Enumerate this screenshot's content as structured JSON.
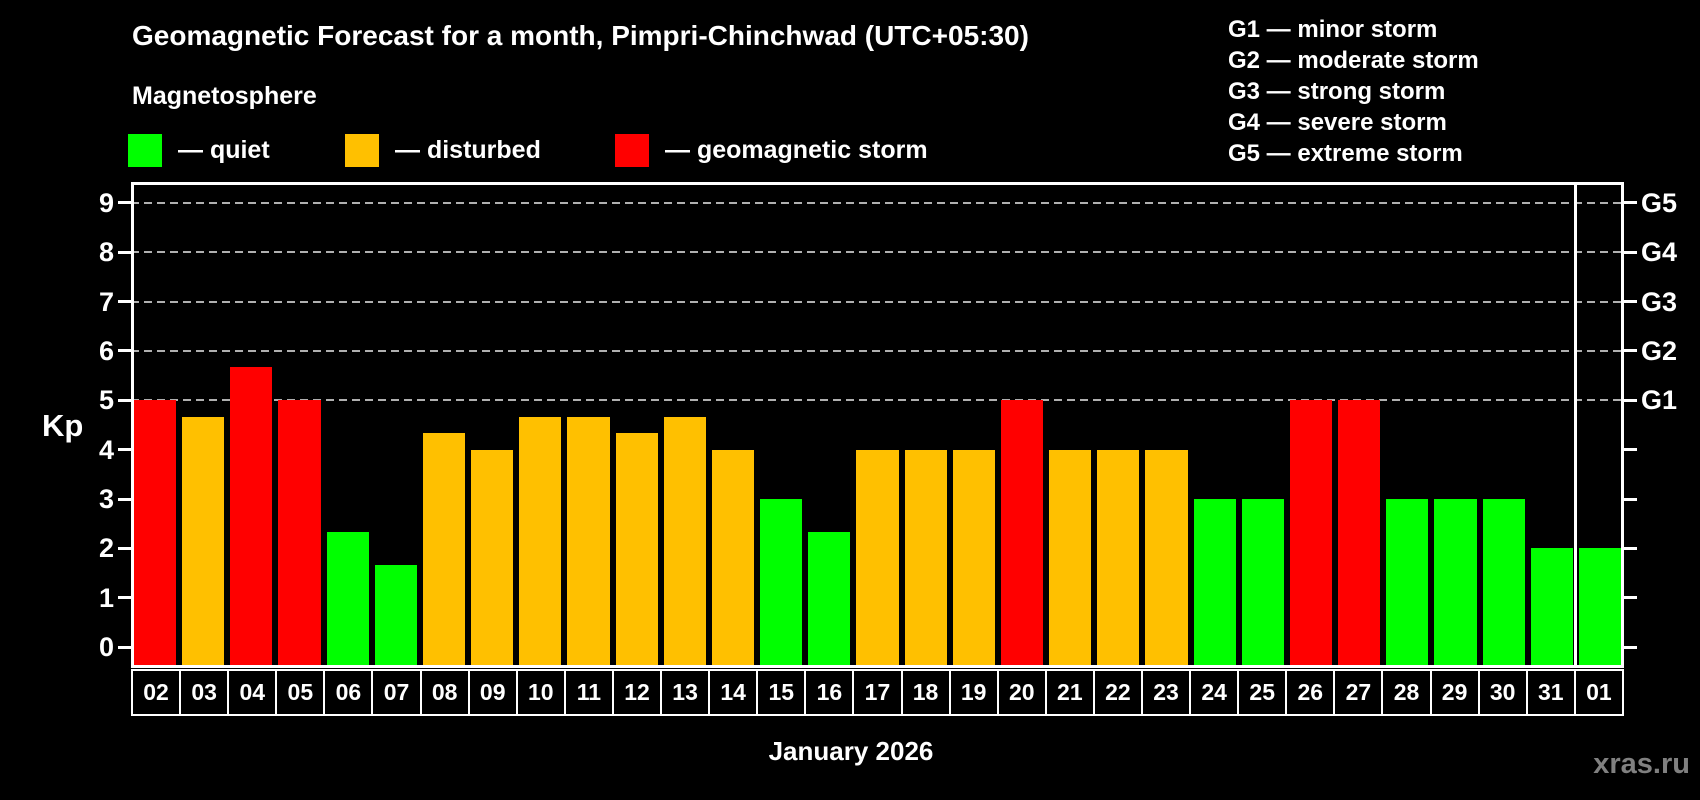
{
  "header": {
    "subtitle": "Magnetosphere",
    "legend": [
      {
        "name": "quiet",
        "label": "— quiet",
        "color": "#00ff00"
      },
      {
        "name": "disturbed",
        "label": "— disturbed",
        "color": "#ffc000"
      },
      {
        "name": "storm",
        "label": "— geomagnetic storm",
        "color": "#ff0000"
      }
    ],
    "g_scale": [
      "G1 — minor storm",
      "G2 — moderate storm",
      "G3 — strong storm",
      "G4 — severe storm",
      "G5 — extreme storm"
    ]
  },
  "chart_data": {
    "type": "bar",
    "title": "Geomagnetic Forecast for a month, Pimpri-Chinchwad (UTC+05:30)",
    "ylabel": "Kp",
    "xlabel": "January 2026",
    "ylim": [
      -0.42,
      9.42
    ],
    "yticks": [
      0,
      1,
      2,
      3,
      4,
      5,
      6,
      7,
      8,
      9
    ],
    "gridlines_at": [
      5,
      6,
      7,
      8,
      9
    ],
    "grid": "dashed horizontal lines at storm levels only",
    "legend_position": "top",
    "right_axis_labels": [
      {
        "kp": 5,
        "label": "G1"
      },
      {
        "kp": 6,
        "label": "G2"
      },
      {
        "kp": 7,
        "label": "G3"
      },
      {
        "kp": 8,
        "label": "G4"
      },
      {
        "kp": 9,
        "label": "G5"
      }
    ],
    "categories": [
      "02",
      "03",
      "04",
      "05",
      "06",
      "07",
      "08",
      "09",
      "10",
      "11",
      "12",
      "13",
      "14",
      "15",
      "16",
      "17",
      "18",
      "19",
      "20",
      "21",
      "22",
      "23",
      "24",
      "25",
      "26",
      "27",
      "28",
      "29",
      "30",
      "31",
      "01"
    ],
    "values": [
      5,
      4.67,
      5.67,
      5,
      2.33,
      1.67,
      4.33,
      4,
      4.67,
      4.67,
      4.33,
      4.67,
      4,
      3,
      2.33,
      4,
      4,
      4,
      5,
      4,
      4,
      4,
      3,
      3,
      5,
      5,
      3,
      3,
      3,
      2,
      2
    ],
    "statuses": [
      "storm",
      "disturbed",
      "storm",
      "storm",
      "quiet",
      "quiet",
      "disturbed",
      "disturbed",
      "disturbed",
      "disturbed",
      "disturbed",
      "disturbed",
      "disturbed",
      "quiet",
      "quiet",
      "disturbed",
      "disturbed",
      "disturbed",
      "storm",
      "disturbed",
      "disturbed",
      "disturbed",
      "quiet",
      "quiet",
      "storm",
      "storm",
      "quiet",
      "quiet",
      "quiet",
      "quiet",
      "quiet"
    ],
    "status_colors": {
      "quiet": "#00ff00",
      "disturbed": "#ffc000",
      "storm": "#ff0000"
    },
    "month_separator_after_index": 29
  },
  "footer": {
    "watermark": "xras.ru"
  }
}
